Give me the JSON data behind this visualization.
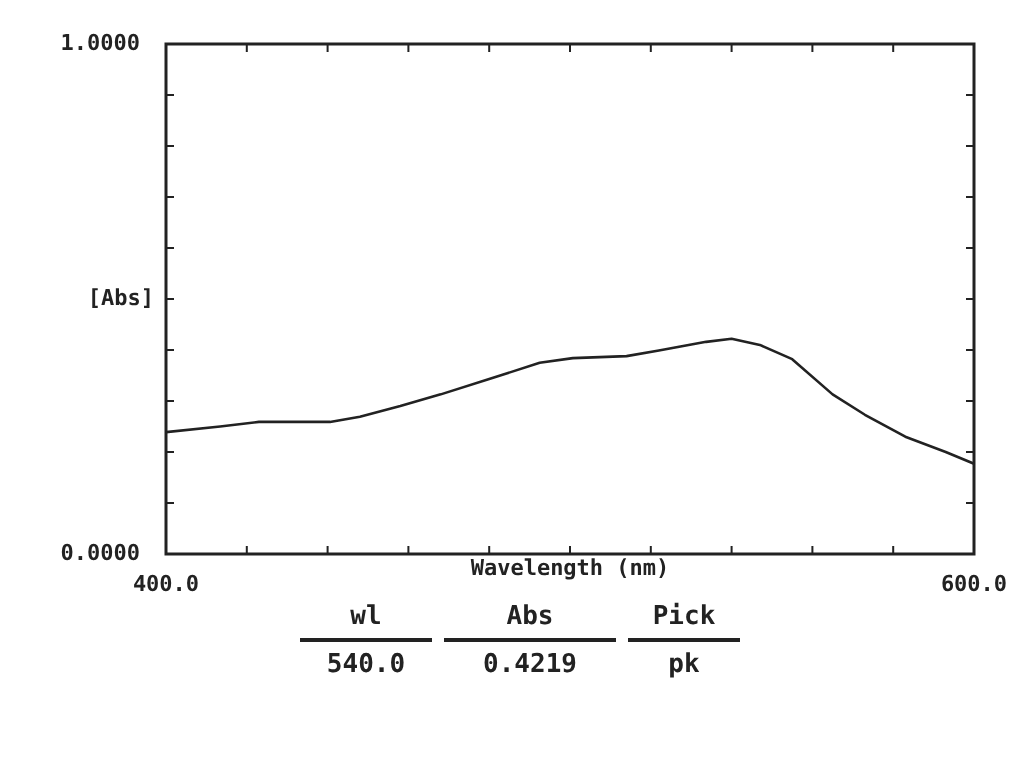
{
  "chart_data": {
    "type": "line",
    "xlabel": "Wavelength (nm)",
    "ylabel": "[Abs]",
    "x": [
      400,
      413.4,
      423,
      440.6,
      448,
      458,
      468,
      480,
      492.5,
      500.7,
      514,
      522,
      533.7,
      540,
      547,
      555,
      565,
      573,
      583,
      593,
      600
    ],
    "series": [
      {
        "color": "#222222",
        "values": [
          0.239,
          0.25,
          0.259,
          0.259,
          0.269,
          0.29,
          0.313,
          0.343,
          0.375,
          0.384,
          0.388,
          0.399,
          0.416,
          0.422,
          0.41,
          0.382,
          0.313,
          0.273,
          0.23,
          0.2,
          0.177
        ]
      }
    ],
    "xlim": [
      400,
      600
    ],
    "xticks": [
      {
        "value": 400,
        "label": "400.0"
      },
      {
        "value": 420,
        "label": null
      },
      {
        "value": 440,
        "label": null
      },
      {
        "value": 460,
        "label": null
      },
      {
        "value": 480,
        "label": null
      },
      {
        "value": 500,
        "label": null
      },
      {
        "value": 520,
        "label": null
      },
      {
        "value": 540,
        "label": null
      },
      {
        "value": 560,
        "label": null
      },
      {
        "value": 580,
        "label": null
      },
      {
        "value": 600,
        "label": "600.0"
      }
    ],
    "ylim": [
      0,
      1
    ],
    "yticks": [
      {
        "value": 0,
        "label": "0.0000"
      },
      {
        "value": 0.1,
        "label": null
      },
      {
        "value": 0.2,
        "label": null
      },
      {
        "value": 0.3,
        "label": null
      },
      {
        "value": 0.4,
        "label": null
      },
      {
        "value": 0.5,
        "label": null
      },
      {
        "value": 0.6,
        "label": null
      },
      {
        "value": 0.7,
        "label": null
      },
      {
        "value": 0.8,
        "label": null
      },
      {
        "value": 0.9,
        "label": null
      },
      {
        "value": 1,
        "label": "1.0000"
      }
    ],
    "grid": false,
    "legend": false,
    "marker": "none",
    "line_style": "solid",
    "annotations": [
      "wl",
      "Abs",
      "Pick",
      "540.0",
      "0.4219",
      "pk"
    ]
  }
}
